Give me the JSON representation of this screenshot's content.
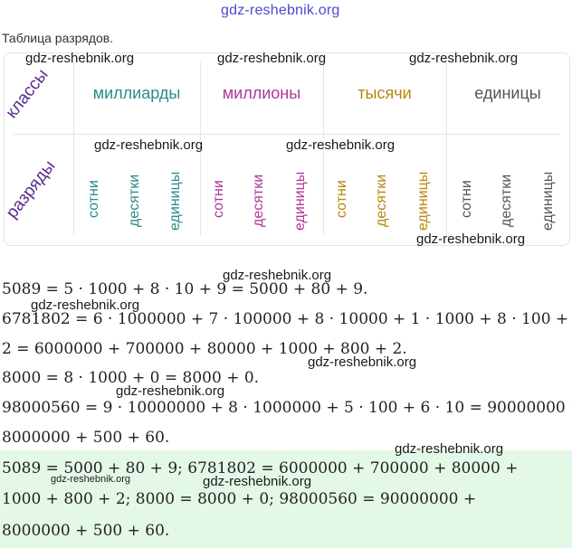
{
  "watermark": "gdz-reshebnik.org",
  "title": "Таблица разрядов.",
  "table": {
    "row_classes": "классы",
    "row_ranks": "разряды",
    "classes": [
      {
        "label": "миллиарды",
        "color": "#2a8c8c"
      },
      {
        "label": "миллионы",
        "color": "#b0359a"
      },
      {
        "label": "тысячи",
        "color": "#b8860b"
      },
      {
        "label": "единицы",
        "color": "#555555"
      }
    ],
    "ranks": [
      "сотни",
      "десятки",
      "единицы"
    ]
  },
  "equations": [
    "5089 = 5 · 1000 + 8 · 10 + 9 = 5000 + 80 + 9.",
    "6781802 = 6 · 1000000 + 7 · 100000 + 8 · 10000 + 1 · 1000 + 8 · 100 +",
    "2 = 6000000 + 700000 + 80000 + 1000 + 800 + 2.",
    "8000 = 8 · 1000 + 0 = 8000 + 0.",
    "98000560 = 9 · 10000000 + 8 · 1000000 + 5 · 100 + 6 · 10 = 90000000 +",
    "8000000 + 500 + 60."
  ],
  "answer": [
    "5089 = 5000 + 80 + 9; 6781802 = 6000000 + 700000 + 80000 +",
    "1000 + 800 + 2; 8000 = 8000 + 0; 98000560 = 90000000 +",
    "8000000 + 500 + 60."
  ]
}
